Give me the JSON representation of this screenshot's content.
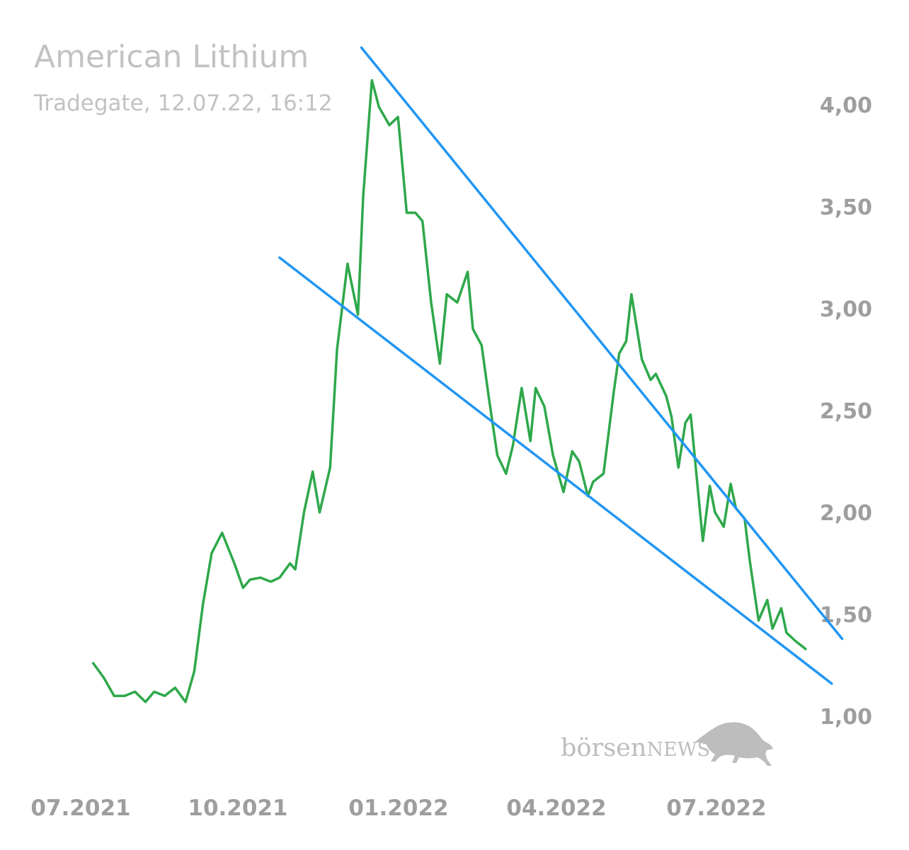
{
  "header": {
    "title": "American Lithium",
    "subtitle": "Tradegate, 12.07.22, 16:12"
  },
  "watermark": {
    "brand_lower": "börsen",
    "brand_upper": "NEWS",
    "icon": "bull-icon"
  },
  "colors": {
    "price_line": "#2ea84a",
    "trend_line": "#2196f3",
    "tick_text": "#9e9e9e",
    "title_text": "#c2c2c2",
    "watermark": "#bdbdbd"
  },
  "chart_data": {
    "type": "line",
    "title": "American Lithium",
    "subtitle": "Tradegate, 12.07.22, 16:12",
    "xlabel": "",
    "ylabel": "",
    "x_ticks": [
      "07.2021",
      "10.2021",
      "01.2022",
      "04.2022",
      "07.2022"
    ],
    "y_ticks": [
      "1,00",
      "1,50",
      "2,00",
      "2,50",
      "3,00",
      "3,50",
      "4,00"
    ],
    "ylim": [
      0.8,
      4.25
    ],
    "grid": false,
    "legend": "none",
    "y_axis_position": "right",
    "series": [
      {
        "style": "price",
        "points": [
          [
            "2021-07-09",
            1.26
          ],
          [
            "2021-07-15",
            1.19
          ],
          [
            "2021-07-21",
            1.1
          ],
          [
            "2021-07-27",
            1.1
          ],
          [
            "2021-08-02",
            1.12
          ],
          [
            "2021-08-08",
            1.07
          ],
          [
            "2021-08-13",
            1.12
          ],
          [
            "2021-08-19",
            1.1
          ],
          [
            "2021-08-25",
            1.14
          ],
          [
            "2021-08-31",
            1.07
          ],
          [
            "2021-09-05",
            1.22
          ],
          [
            "2021-09-10",
            1.55
          ],
          [
            "2021-09-15",
            1.8
          ],
          [
            "2021-09-21",
            1.9
          ],
          [
            "2021-09-28",
            1.75
          ],
          [
            "2021-10-03",
            1.63
          ],
          [
            "2021-10-07",
            1.67
          ],
          [
            "2021-10-13",
            1.68
          ],
          [
            "2021-10-19",
            1.66
          ],
          [
            "2021-10-24",
            1.68
          ],
          [
            "2021-10-30",
            1.75
          ],
          [
            "2021-11-02",
            1.72
          ],
          [
            "2021-11-07",
            2.0
          ],
          [
            "2021-11-12",
            2.2
          ],
          [
            "2021-11-16",
            2.0
          ],
          [
            "2021-11-22",
            2.22
          ],
          [
            "2021-11-26",
            2.8
          ],
          [
            "2021-12-02",
            3.22
          ],
          [
            "2021-12-08",
            2.97
          ],
          [
            "2021-12-11",
            3.55
          ],
          [
            "2021-12-16",
            4.12
          ],
          [
            "2021-12-20",
            3.99
          ],
          [
            "2021-12-26",
            3.9
          ],
          [
            "2021-12-31",
            3.94
          ],
          [
            "2022-01-05",
            3.47
          ],
          [
            "2022-01-10",
            3.47
          ],
          [
            "2022-01-14",
            3.43
          ],
          [
            "2022-01-19",
            3.03
          ],
          [
            "2022-01-24",
            2.73
          ],
          [
            "2022-01-28",
            3.07
          ],
          [
            "2022-02-03",
            3.03
          ],
          [
            "2022-02-09",
            3.18
          ],
          [
            "2022-02-12",
            2.9
          ],
          [
            "2022-02-17",
            2.82
          ],
          [
            "2022-02-21",
            2.57
          ],
          [
            "2022-02-26",
            2.28
          ],
          [
            "2022-03-03",
            2.19
          ],
          [
            "2022-03-07",
            2.33
          ],
          [
            "2022-03-12",
            2.61
          ],
          [
            "2022-03-17",
            2.35
          ],
          [
            "2022-03-20",
            2.61
          ],
          [
            "2022-03-25",
            2.52
          ],
          [
            "2022-03-30",
            2.28
          ],
          [
            "2022-04-05",
            2.1
          ],
          [
            "2022-04-10",
            2.3
          ],
          [
            "2022-04-14",
            2.25
          ],
          [
            "2022-04-19",
            2.08
          ],
          [
            "2022-04-22",
            2.15
          ],
          [
            "2022-04-28",
            2.19
          ],
          [
            "2022-05-04",
            2.6
          ],
          [
            "2022-05-07",
            2.78
          ],
          [
            "2022-05-11",
            2.84
          ],
          [
            "2022-05-14",
            3.07
          ],
          [
            "2022-05-20",
            2.75
          ],
          [
            "2022-05-25",
            2.65
          ],
          [
            "2022-05-28",
            2.68
          ],
          [
            "2022-06-03",
            2.57
          ],
          [
            "2022-06-06",
            2.47
          ],
          [
            "2022-06-10",
            2.22
          ],
          [
            "2022-06-14",
            2.44
          ],
          [
            "2022-06-17",
            2.48
          ],
          [
            "2022-06-24",
            1.86
          ],
          [
            "2022-06-28",
            2.13
          ],
          [
            "2022-07-01",
            2.0
          ],
          [
            "2022-07-06",
            1.93
          ],
          [
            "2022-07-10",
            2.14
          ],
          [
            "2022-07-13",
            2.02
          ],
          [
            "2022-07-18",
            1.97
          ],
          [
            "2022-07-21",
            1.76
          ],
          [
            "2022-07-26",
            1.47
          ],
          [
            "2022-07-31",
            1.57
          ],
          [
            "2022-08-03",
            1.43
          ],
          [
            "2022-08-08",
            1.53
          ],
          [
            "2022-08-11",
            1.41
          ],
          [
            "2022-08-16",
            1.37
          ],
          [
            "2022-08-22",
            1.33
          ]
        ]
      },
      {
        "style": "trendline",
        "points": [
          [
            "2021-12-10",
            4.28
          ],
          [
            "2022-09-12",
            1.38
          ]
        ]
      },
      {
        "style": "trendline",
        "points": [
          [
            "2021-10-24",
            3.25
          ],
          [
            "2022-09-06",
            1.16
          ]
        ]
      }
    ]
  }
}
